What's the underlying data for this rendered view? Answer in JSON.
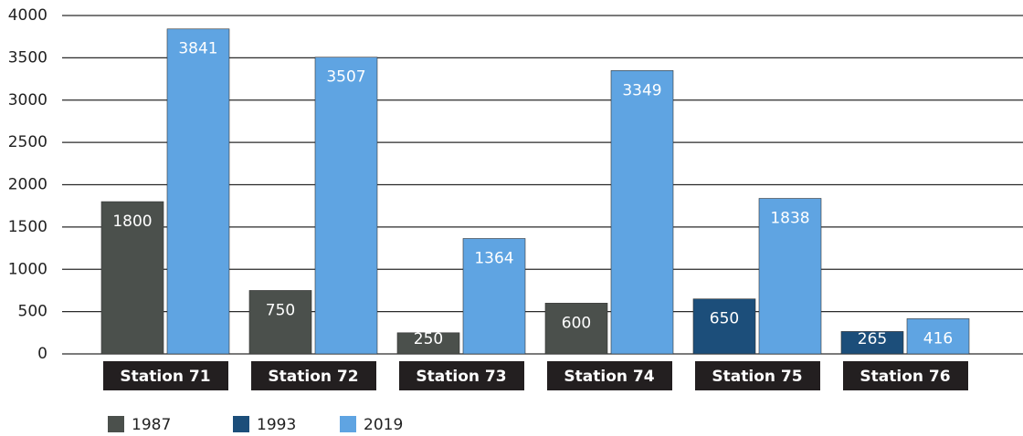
{
  "chart_data": {
    "type": "bar",
    "categories": [
      "Station 71",
      "Station 72",
      "Station 73",
      "Station 74",
      "Station 75",
      "Station 76"
    ],
    "series": [
      {
        "name": "1987",
        "color": "#4b504c",
        "values": [
          1800,
          750,
          250,
          600,
          null,
          null
        ]
      },
      {
        "name": "1993",
        "color": "#1c4e7a",
        "values": [
          null,
          null,
          null,
          null,
          650,
          265
        ]
      },
      {
        "name": "2019",
        "color": "#5fa4e2",
        "values": [
          3841,
          3507,
          1364,
          3349,
          1838,
          416
        ]
      }
    ],
    "ylim": [
      0,
      4000
    ],
    "yticks": [
      0,
      500,
      1000,
      1500,
      2000,
      2500,
      3000,
      3500,
      4000
    ],
    "grid": true,
    "legend": "bottom"
  }
}
